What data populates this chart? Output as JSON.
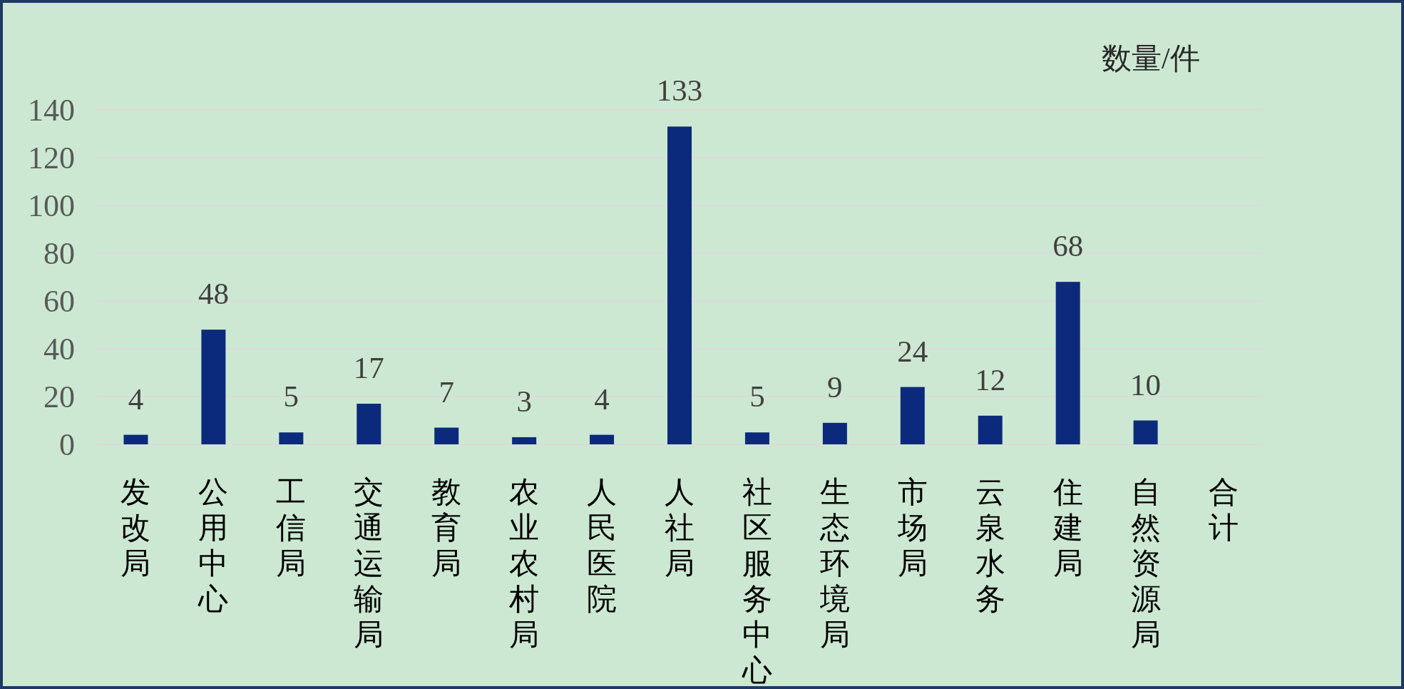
{
  "chart_data": {
    "type": "bar",
    "ylabel": "数量/件",
    "categories": [
      "发改局",
      "公用中心",
      "工信局",
      "交通运输局",
      "教育局",
      "农业农村局",
      "人民医院",
      "人社局",
      "社区服务中心",
      "生态环境局",
      "市场局",
      "云泉水务",
      "住建局",
      "自然资源局",
      "合计"
    ],
    "values": [
      4,
      48,
      5,
      17,
      7,
      3,
      4,
      133,
      5,
      9,
      24,
      12,
      68,
      10,
      null
    ],
    "color": "#0c2a7c",
    "ylim": [
      0,
      140
    ],
    "yticks": [
      0,
      20,
      40,
      60,
      80,
      100,
      120,
      140
    ],
    "grid": "y",
    "data_labels": true
  }
}
